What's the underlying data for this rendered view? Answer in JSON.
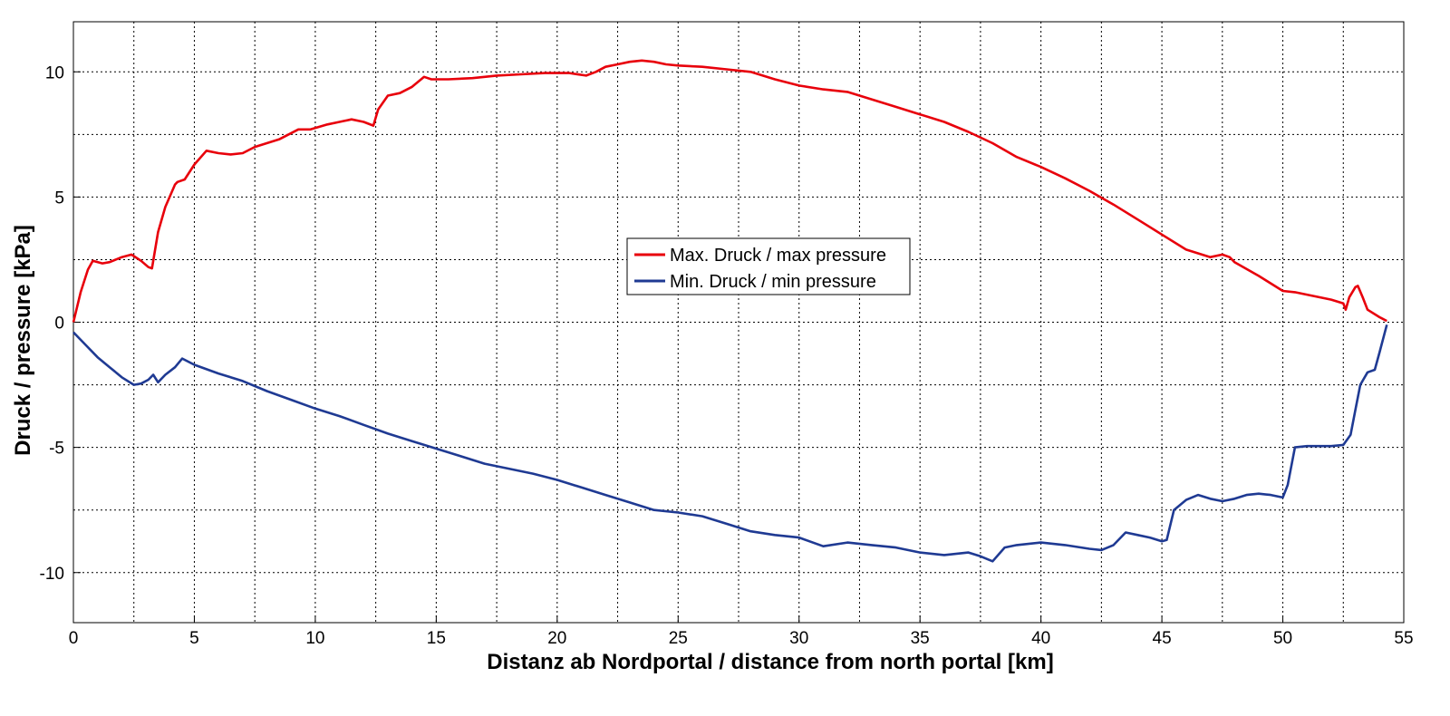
{
  "chart_data": {
    "type": "line",
    "xlabel": "Distanz ab Nordportal / distance from north portal [km]",
    "ylabel": "Druck / pressure [kPa]",
    "xlim": [
      0,
      55
    ],
    "ylim": [
      -12,
      12
    ],
    "x_ticks": [
      0,
      5,
      10,
      15,
      20,
      25,
      30,
      35,
      40,
      45,
      50,
      55
    ],
    "y_ticks": [
      -10,
      -5,
      0,
      5,
      10
    ],
    "grid": true,
    "legend_position": "center",
    "series": [
      {
        "name": "Max. Druck / max pressure",
        "color": "#e8000b",
        "x": [
          0,
          0.3,
          0.6,
          0.8,
          1.2,
          1.5,
          2.0,
          2.4,
          2.8,
          3.1,
          3.25,
          3.5,
          3.8,
          4.2,
          4.3,
          4.6,
          5.0,
          5.5,
          6.0,
          6.5,
          7.0,
          7.5,
          8.5,
          9.3,
          9.8,
          10.5,
          11.0,
          11.5,
          12.0,
          12.4,
          12.6,
          13.0,
          13.5,
          14.0,
          14.5,
          14.8,
          15.5,
          16.5,
          17.5,
          18.5,
          19.5,
          20.5,
          21.2,
          21.6,
          22.0,
          22.5,
          23.0,
          23.5,
          24.0,
          24.5,
          25.0,
          26.0,
          27.0,
          28.0,
          29.0,
          30.0,
          31.0,
          32.0,
          33.0,
          34.0,
          35.0,
          36.0,
          37.0,
          38.0,
          39.0,
          40.0,
          41.0,
          42.0,
          43.0,
          44.0,
          45.0,
          46.0,
          47.0,
          47.5,
          47.8,
          48.0,
          49.0,
          50.0,
          50.5,
          51.0,
          52.0,
          52.5,
          52.6,
          52.75,
          53.0,
          53.1,
          53.3,
          53.5,
          54.0,
          54.3
        ],
        "values": [
          0,
          1.2,
          2.1,
          2.45,
          2.35,
          2.4,
          2.6,
          2.7,
          2.45,
          2.2,
          2.15,
          3.6,
          4.6,
          5.5,
          5.6,
          5.7,
          6.3,
          6.85,
          6.75,
          6.7,
          6.75,
          7.0,
          7.3,
          7.7,
          7.7,
          7.9,
          8.0,
          8.1,
          8.0,
          7.85,
          8.5,
          9.05,
          9.15,
          9.4,
          9.8,
          9.7,
          9.7,
          9.75,
          9.85,
          9.9,
          9.95,
          9.95,
          9.85,
          10.0,
          10.2,
          10.3,
          10.4,
          10.45,
          10.4,
          10.3,
          10.25,
          10.2,
          10.1,
          10.0,
          9.7,
          9.45,
          9.3,
          9.2,
          8.9,
          8.6,
          8.3,
          8.0,
          7.6,
          7.15,
          6.6,
          6.2,
          5.75,
          5.25,
          4.7,
          4.1,
          3.5,
          2.9,
          2.6,
          2.7,
          2.6,
          2.4,
          1.85,
          1.25,
          1.2,
          1.1,
          0.9,
          0.75,
          0.5,
          1.0,
          1.4,
          1.45,
          1.0,
          0.5,
          0.2,
          0.05
        ]
      },
      {
        "name": "Min. Druck / min pressure",
        "color": "#1f3a93",
        "x": [
          0,
          0.5,
          1.0,
          1.5,
          2.0,
          2.5,
          2.8,
          3.1,
          3.3,
          3.5,
          3.8,
          4.2,
          4.5,
          5.0,
          6.0,
          7.0,
          8.0,
          9.0,
          10.0,
          11.0,
          12.0,
          13.0,
          14.0,
          15.0,
          16.0,
          17.0,
          18.0,
          19.0,
          20.0,
          21.0,
          22.0,
          23.0,
          24.0,
          25.0,
          26.0,
          27.0,
          28.0,
          29.0,
          30.0,
          31.0,
          32.0,
          33.0,
          34.0,
          35.0,
          36.0,
          37.0,
          37.5,
          38.0,
          38.5,
          39.0,
          40.0,
          41.0,
          42.0,
          42.5,
          43.0,
          43.5,
          44.0,
          44.5,
          45.0,
          45.2,
          45.5,
          46.0,
          46.5,
          47.0,
          47.5,
          48.0,
          48.5,
          49.0,
          49.5,
          50.0,
          50.2,
          50.5,
          51.0,
          52.0,
          52.5,
          52.8,
          53.0,
          53.2,
          53.5,
          53.8,
          54.0,
          54.3
        ],
        "values": [
          -0.4,
          -0.9,
          -1.4,
          -1.8,
          -2.2,
          -2.5,
          -2.45,
          -2.3,
          -2.1,
          -2.4,
          -2.1,
          -1.8,
          -1.45,
          -1.7,
          -2.05,
          -2.35,
          -2.75,
          -3.1,
          -3.45,
          -3.75,
          -4.1,
          -4.45,
          -4.75,
          -5.05,
          -5.35,
          -5.65,
          -5.85,
          -6.05,
          -6.3,
          -6.6,
          -6.9,
          -7.2,
          -7.5,
          -7.6,
          -7.75,
          -8.05,
          -8.35,
          -8.5,
          -8.6,
          -8.95,
          -8.8,
          -8.9,
          -9.0,
          -9.2,
          -9.3,
          -9.2,
          -9.35,
          -9.55,
          -9.0,
          -8.9,
          -8.8,
          -8.9,
          -9.05,
          -9.1,
          -8.9,
          -8.4,
          -8.5,
          -8.6,
          -8.75,
          -8.7,
          -7.5,
          -7.1,
          -6.9,
          -7.05,
          -7.15,
          -7.05,
          -6.9,
          -6.85,
          -6.9,
          -7.0,
          -6.5,
          -5.0,
          -4.95,
          -4.95,
          -4.9,
          -4.5,
          -3.5,
          -2.5,
          -2.0,
          -1.9,
          -1.2,
          -0.1
        ]
      }
    ]
  }
}
